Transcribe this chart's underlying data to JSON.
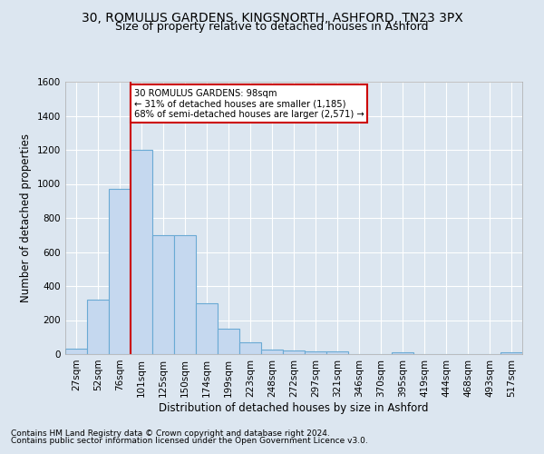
{
  "title": "30, ROMULUS GARDENS, KINGSNORTH, ASHFORD, TN23 3PX",
  "subtitle": "Size of property relative to detached houses in Ashford",
  "xlabel": "Distribution of detached houses by size in Ashford",
  "ylabel": "Number of detached properties",
  "footnote1": "Contains HM Land Registry data © Crown copyright and database right 2024.",
  "footnote2": "Contains public sector information licensed under the Open Government Licence v3.0.",
  "bar_labels": [
    "27sqm",
    "52sqm",
    "76sqm",
    "101sqm",
    "125sqm",
    "150sqm",
    "174sqm",
    "199sqm",
    "223sqm",
    "248sqm",
    "272sqm",
    "297sqm",
    "321sqm",
    "346sqm",
    "370sqm",
    "395sqm",
    "419sqm",
    "444sqm",
    "468sqm",
    "493sqm",
    "517sqm"
  ],
  "bar_values": [
    30,
    320,
    970,
    1200,
    700,
    700,
    300,
    150,
    70,
    25,
    20,
    15,
    15,
    0,
    0,
    12,
    0,
    0,
    0,
    0,
    12
  ],
  "bar_color": "#c5d8ef",
  "bar_edge_color": "#6aaad4",
  "property_line_index": 2.5,
  "annotation_text": "30 ROMULUS GARDENS: 98sqm\n← 31% of detached houses are smaller (1,185)\n68% of semi-detached houses are larger (2,571) →",
  "annotation_box_color": "#ffffff",
  "annotation_box_edge_color": "#cc0000",
  "property_line_color": "#cc0000",
  "ylim": [
    0,
    1600
  ],
  "yticks": [
    0,
    200,
    400,
    600,
    800,
    1000,
    1200,
    1400,
    1600
  ],
  "background_color": "#dce6f0",
  "plot_bg_color": "#dce6f0",
  "grid_color": "#ffffff",
  "title_fontsize": 10,
  "subtitle_fontsize": 9,
  "axis_fontsize": 8.5,
  "tick_fontsize": 7.5,
  "footnote_fontsize": 6.5
}
